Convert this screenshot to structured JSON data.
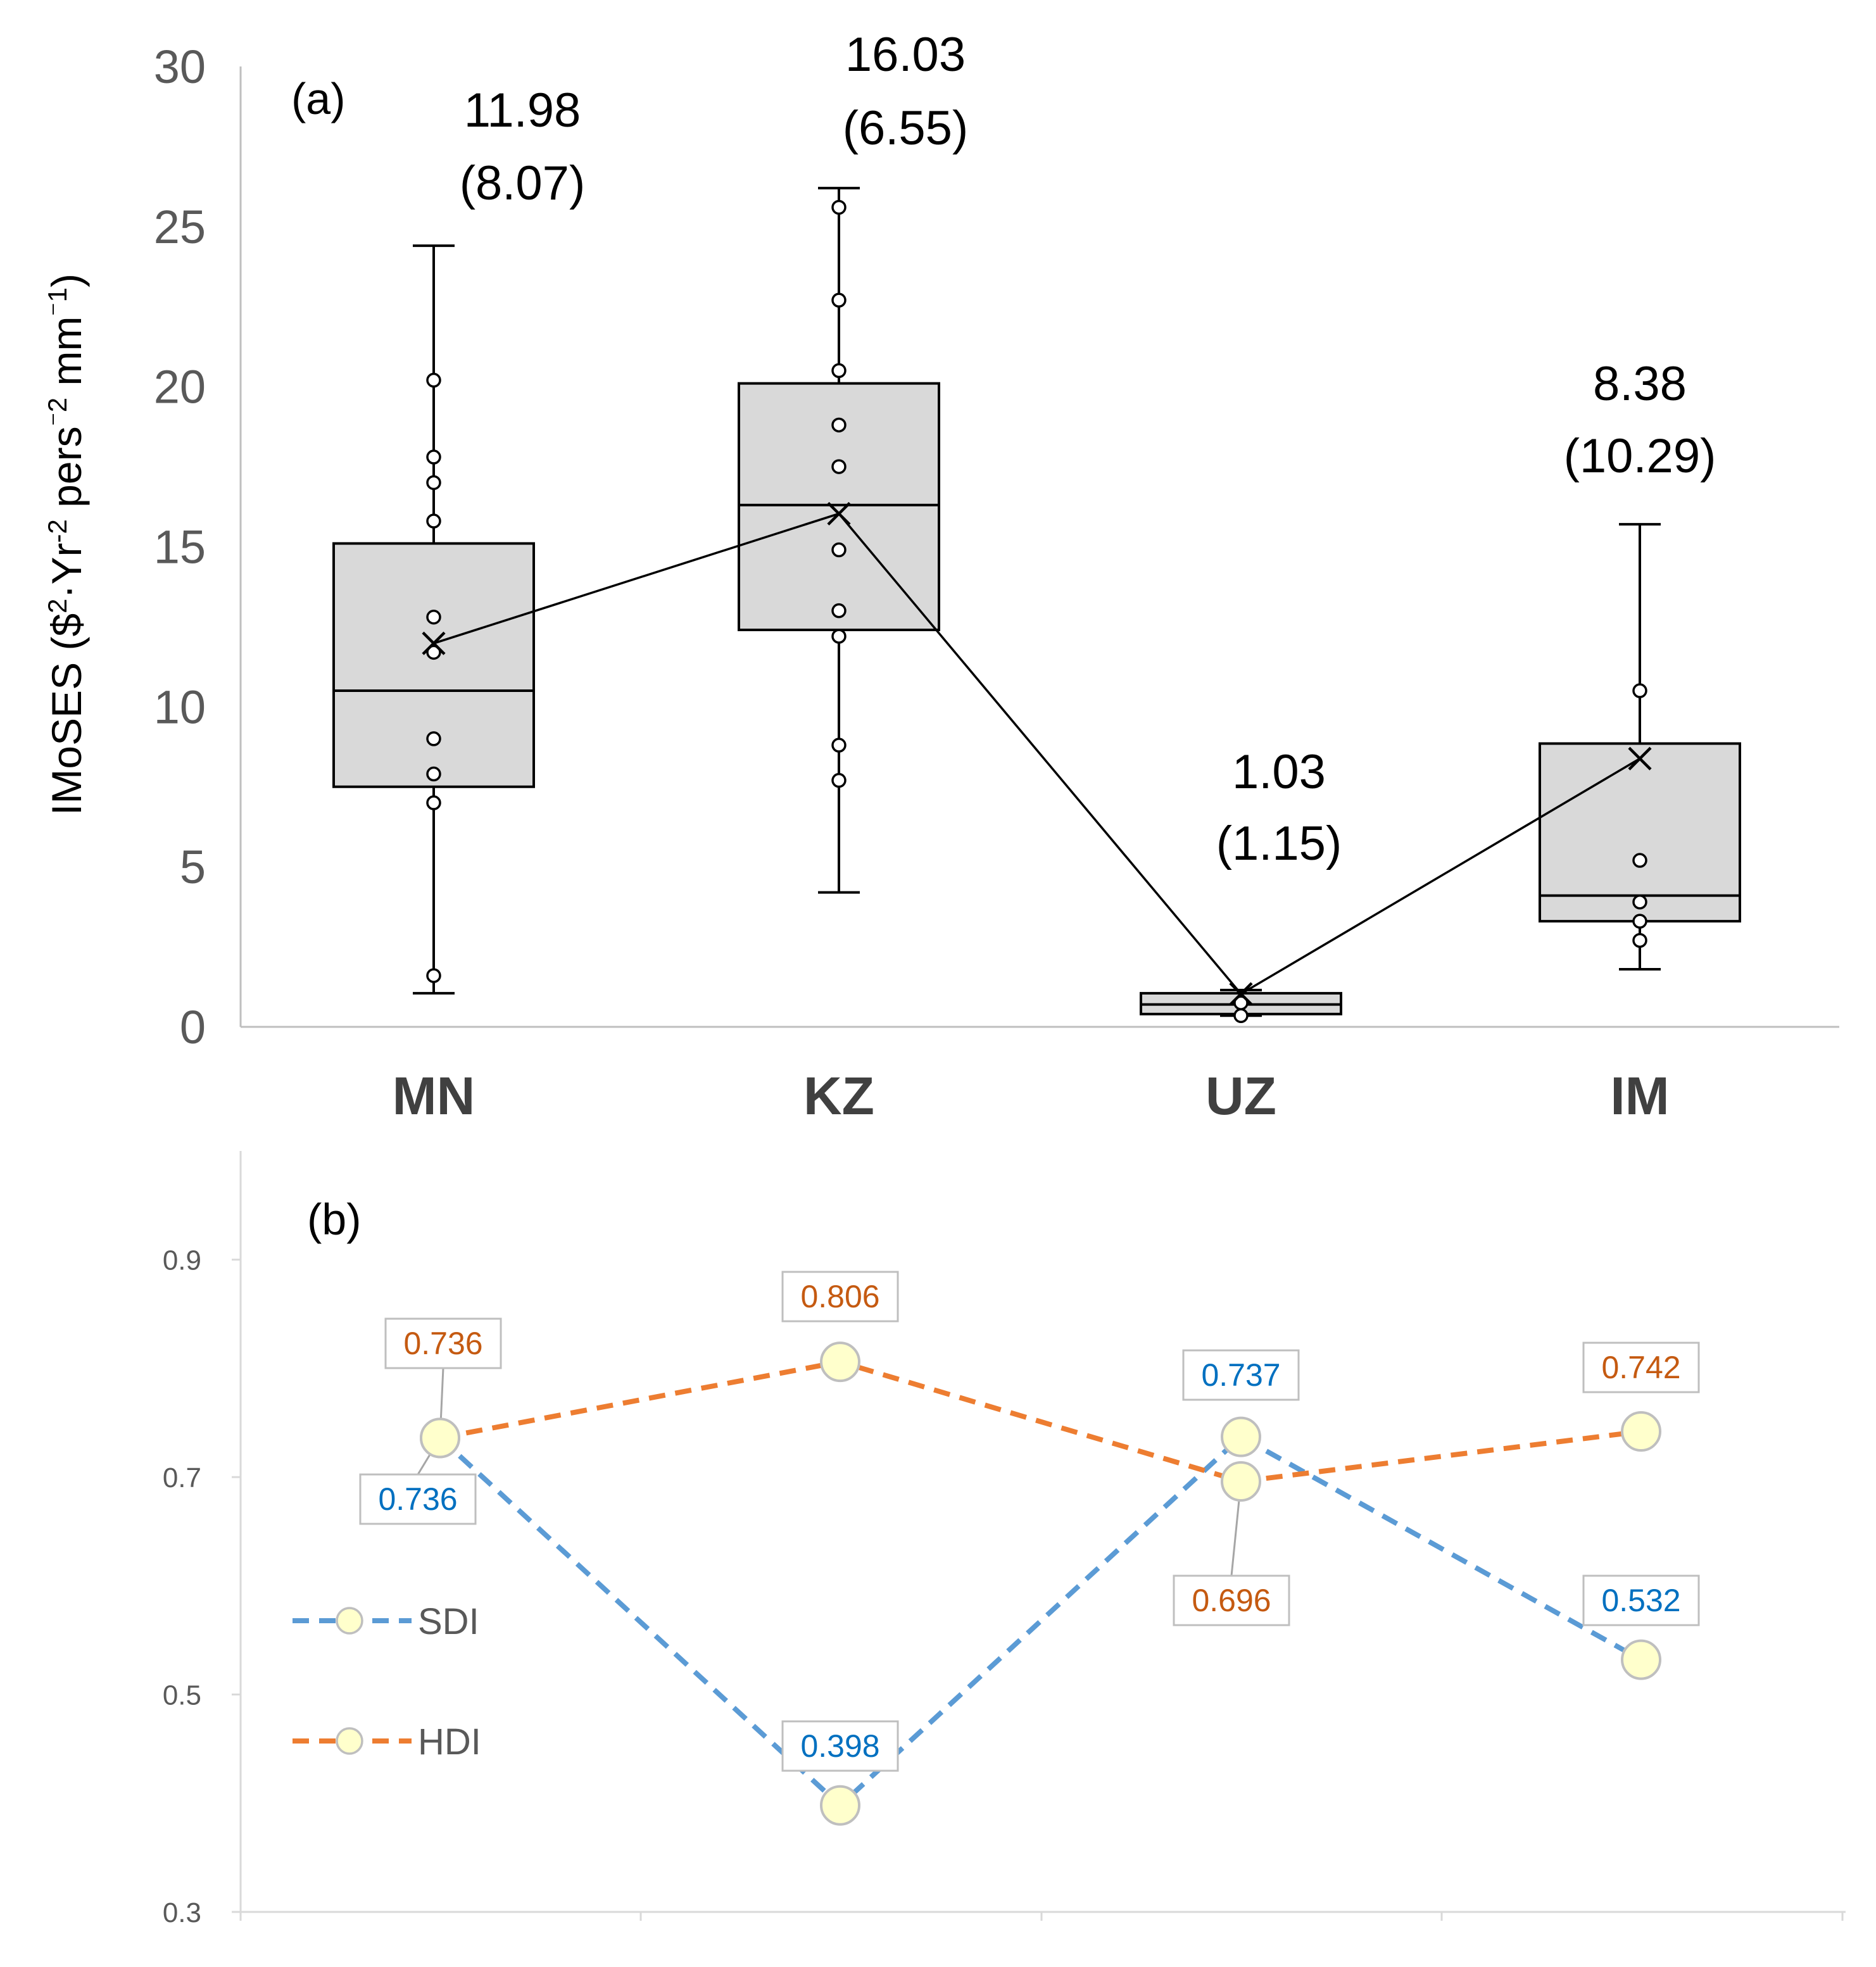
{
  "colors": {
    "box_fill": "#d9d9d9",
    "sdi": "#5b9bd5",
    "hdi": "#ed7d31",
    "marker_fill": "#ffffcc",
    "sdi_label": "#0070c0",
    "hdi_label": "#c55a11"
  },
  "chart_data": [
    {
      "panel": "(a)",
      "type": "box",
      "ylabel": "IMoSES ($²·Yr⁻² pers⁻² mm⁻¹)",
      "ylabel_parts": [
        "IMoSES ($",
        "2",
        "·Yr",
        "-2",
        " pers",
        "⁻2",
        " mm",
        "⁻1",
        ")"
      ],
      "ylim": [
        0,
        30
      ],
      "yticks": [
        0,
        5,
        10,
        15,
        20,
        25,
        30
      ],
      "categories": [
        "MN",
        "KZ",
        "UZ",
        "IM"
      ],
      "boxes": [
        {
          "name": "MN",
          "min": 1.05,
          "q1": 7.5,
          "median": 10.5,
          "q3": 15.1,
          "max": 24.4,
          "mean": 11.98,
          "sd": 8.07,
          "mean_label": "11.98",
          "sd_label": "(8.07)",
          "points": [
            1.6,
            7.0,
            7.9,
            9.0,
            11.7,
            12.8,
            15.8,
            17.0,
            17.8,
            20.2
          ]
        },
        {
          "name": "KZ",
          "min": 4.2,
          "q1": 12.4,
          "median": 16.3,
          "q3": 20.1,
          "max": 26.2,
          "mean": 16.03,
          "sd": 6.55,
          "mean_label": "16.03",
          "sd_label": "(6.55)",
          "points": [
            7.7,
            8.8,
            12.2,
            13.0,
            14.9,
            17.5,
            18.8,
            20.5,
            22.7,
            25.6
          ]
        },
        {
          "name": "UZ",
          "min": 0.35,
          "q1": 0.4,
          "median": 0.7,
          "q3": 1.05,
          "max": 1.15,
          "mean": 1.03,
          "sd": 1.15,
          "mean_label": "1.03",
          "sd_label": "(1.15)",
          "points": [
            0.35,
            0.75
          ]
        },
        {
          "name": "IM",
          "min": 1.8,
          "q1": 3.3,
          "median": 4.1,
          "q3": 8.85,
          "max": 15.7,
          "mean": 8.38,
          "sd": 10.29,
          "mean_label": "8.38",
          "sd_label": "(10.29)",
          "points": [
            2.7,
            3.3,
            3.9,
            5.2,
            10.5
          ]
        }
      ]
    },
    {
      "panel": "(b)",
      "type": "line",
      "categories": [
        "MN",
        "KZ",
        "UZ",
        "IM"
      ],
      "ylim": [
        0.3,
        1.0
      ],
      "yticks": [
        "0.3",
        "0.5",
        "0.7",
        "0.9"
      ],
      "series": [
        {
          "name": "SDI",
          "values": [
            0.736,
            0.398,
            0.737,
            0.532
          ],
          "labels": [
            "0.736",
            "0.398",
            "0.737",
            "0.532"
          ]
        },
        {
          "name": "HDI",
          "values": [
            0.736,
            0.806,
            0.696,
            0.742
          ],
          "labels": [
            "0.736",
            "0.806",
            "0.696",
            "0.742"
          ]
        }
      ]
    }
  ]
}
